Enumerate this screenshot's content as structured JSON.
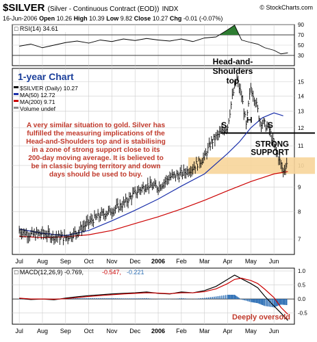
{
  "header": {
    "symbol": "$SILVER",
    "contract": "(Silver - Continuous Contract (EOD))",
    "exchange": "INDX",
    "brand": "© StockCharts.com",
    "quote": {
      "date": "16-Jun-2006",
      "open_label": "Open",
      "open": "10.26",
      "high_label": "High",
      "high": "10.39",
      "low_label": "Low",
      "low": "9.82",
      "close_label": "Close",
      "close": "10.27",
      "chg_label": "Chg",
      "chg": "-0.01 (-0.07%)"
    }
  },
  "annotations": {
    "period": "1-year Chart",
    "hs_title": "Head-and-\nShoulders\ntop",
    "left_shoulder": "S",
    "head": "H",
    "right_shoulder": "S",
    "support": "STRONG\nSUPPORT",
    "commentary": "A very similar situation to gold. Silver has\nfulfilled the measuring implications of the\nHead-and-Shoulders top and is stabilising\nin a zone of strong support close to its\n200-day moving average. It is believed to\nbe in classic buying territory and down\ndays should be used to buy.",
    "oversold": "Deeply oversold"
  },
  "colors": {
    "price": "#000000",
    "ma50": "#1a2faa",
    "ma200": "#cc0000",
    "rsi_fill": "#2e7d32",
    "support_zone": "#f7d59a",
    "annotation_text": "#c0392b",
    "period_text": "#1a3e9a",
    "macd_hist": "#2d6fb5",
    "grid": "#cccccc"
  },
  "chart_data": [
    {
      "type": "line",
      "panel": "RSI",
      "legend": "RSI(14) 34.61",
      "ylim": [
        10,
        90
      ],
      "yticks": [
        90,
        70,
        50,
        30
      ],
      "reference_lines": [
        70,
        30
      ],
      "x_labels": [
        "Jul",
        "Aug",
        "Sep",
        "Oct",
        "Nov",
        "Dec",
        "2006",
        "Feb",
        "Mar",
        "Apr",
        "May",
        "Jun"
      ],
      "x": [
        0,
        0.5,
        1,
        1.5,
        2,
        2.5,
        3,
        3.5,
        4,
        4.5,
        5,
        5.5,
        6,
        6.5,
        7,
        7.5,
        8,
        8.5,
        9,
        9.3,
        9.6,
        10,
        10.3,
        10.6,
        11,
        11.3,
        11.6
      ],
      "values": [
        48,
        52,
        45,
        50,
        55,
        58,
        54,
        60,
        57,
        62,
        59,
        63,
        60,
        58,
        62,
        57,
        64,
        66,
        80,
        89,
        60,
        55,
        52,
        45,
        40,
        33,
        35
      ]
    },
    {
      "type": "line",
      "panel": "Price",
      "legend": [
        {
          "name": "$SILVER (Daily) 10.27",
          "color": "#000000"
        },
        {
          "name": "MA(50) 12.72",
          "color": "#1a2faa"
        },
        {
          "name": "MA(200) 9.71",
          "color": "#cc0000"
        },
        {
          "name": "Volume undef",
          "color": "#888888"
        }
      ],
      "scale": "log",
      "ylim": [
        6.5,
        16
      ],
      "yticks": [
        15,
        14,
        13,
        12,
        11,
        10,
        9,
        8,
        7
      ],
      "x_labels": [
        "Jul",
        "Aug",
        "Sep",
        "Oct",
        "Nov",
        "Dec",
        "2006",
        "Feb",
        "Mar",
        "Apr",
        "May",
        "Jun"
      ],
      "series": [
        {
          "name": "$SILVER (Daily) 10.27",
          "x": [
            0,
            0.5,
            1,
            1.5,
            2,
            2.5,
            3,
            3.5,
            4,
            4.5,
            5,
            5.5,
            6,
            6.5,
            7,
            7.5,
            8,
            8.3,
            8.6,
            9,
            9.2,
            9.4,
            9.6,
            9.8,
            10,
            10.2,
            10.4,
            10.6,
            10.8,
            11,
            11.2,
            11.4,
            11.6
          ],
          "values": [
            7.3,
            7.15,
            7.2,
            7.1,
            7.05,
            7.25,
            7.6,
            7.85,
            8.05,
            8.3,
            8.75,
            9.1,
            9.0,
            9.45,
            9.6,
            9.9,
            10.4,
            11.2,
            11.6,
            12.1,
            13.9,
            15.2,
            14.0,
            12.1,
            14.6,
            13.7,
            12.4,
            12.2,
            11.9,
            11.0,
            10.4,
            9.7,
            10.27
          ]
        },
        {
          "name": "MA(50) 12.72",
          "x": [
            0,
            1,
            2,
            3,
            4,
            5,
            6,
            7,
            8,
            9,
            9.5,
            10,
            10.5,
            11,
            11.4
          ],
          "values": [
            7.35,
            7.2,
            7.12,
            7.3,
            7.65,
            8.05,
            8.5,
            9.05,
            9.6,
            10.6,
            11.2,
            12.0,
            12.6,
            12.9,
            12.72
          ]
        },
        {
          "name": "MA(200) 9.71",
          "x": [
            0,
            1,
            2,
            3,
            4,
            5,
            6,
            7,
            8,
            9,
            10,
            11,
            11.6
          ],
          "values": [
            7.1,
            7.05,
            7.08,
            7.15,
            7.3,
            7.55,
            7.8,
            8.1,
            8.45,
            8.85,
            9.25,
            9.6,
            9.71
          ]
        }
      ],
      "support_zone": [
        9.6,
        10.4
      ],
      "neckline": 11.7
    },
    {
      "type": "line",
      "panel": "MACD",
      "legend": [
        {
          "name": "MACD(12,26,9)",
          "value": "-0.769",
          "color": "#000000"
        },
        {
          "name": "",
          "value": "-0.547",
          "color": "#cc0000"
        },
        {
          "name": "",
          "value": "-0.221",
          "color": "#2d6fb5"
        }
      ],
      "ylim": [
        -0.9,
        1.1
      ],
      "yticks": [
        1.0,
        0.5,
        0.0,
        -0.5
      ],
      "x_labels": [
        "Jul",
        "Aug",
        "Sep",
        "Oct",
        "Nov",
        "Dec",
        "2006",
        "Feb",
        "Mar",
        "Apr",
        "May",
        "Jun"
      ],
      "series": [
        {
          "name": "MACD",
          "x": [
            0,
            0.5,
            1,
            1.5,
            2,
            2.5,
            3,
            3.5,
            4,
            4.5,
            5,
            5.5,
            6,
            6.5,
            7,
            7.5,
            8,
            8.5,
            9,
            9.3,
            9.6,
            10,
            10.3,
            10.6,
            11,
            11.3,
            11.6
          ],
          "values": [
            0.02,
            -0.02,
            0.0,
            -0.03,
            0.03,
            0.08,
            0.12,
            0.15,
            0.18,
            0.2,
            0.22,
            0.25,
            0.2,
            0.18,
            0.25,
            0.22,
            0.3,
            0.45,
            0.7,
            0.85,
            0.72,
            0.55,
            0.4,
            0.1,
            -0.25,
            -0.5,
            -0.769
          ]
        },
        {
          "name": "Signal",
          "x": [
            0,
            0.5,
            1,
            1.5,
            2,
            2.5,
            3,
            3.5,
            4,
            4.5,
            5,
            5.5,
            6,
            6.5,
            7,
            7.5,
            8,
            8.5,
            9,
            9.3,
            9.6,
            10,
            10.3,
            10.6,
            11,
            11.3,
            11.6
          ],
          "values": [
            0.03,
            0.0,
            0.0,
            -0.01,
            0.01,
            0.05,
            0.09,
            0.12,
            0.15,
            0.18,
            0.2,
            0.22,
            0.21,
            0.19,
            0.22,
            0.22,
            0.26,
            0.36,
            0.55,
            0.7,
            0.74,
            0.66,
            0.55,
            0.35,
            0.05,
            -0.3,
            -0.547
          ]
        }
      ],
      "histogram": {
        "name": "Histogram",
        "x": [
          0,
          0.5,
          1,
          1.5,
          2,
          2.5,
          3,
          3.5,
          4,
          4.5,
          5,
          5.5,
          6,
          6.5,
          7,
          7.5,
          8,
          8.5,
          9,
          9.3,
          9.6,
          10,
          10.3,
          10.6,
          11,
          11.3,
          11.6
        ],
        "values": [
          -0.01,
          -0.02,
          0.0,
          -0.02,
          0.02,
          0.03,
          0.03,
          0.03,
          0.03,
          0.02,
          0.02,
          0.03,
          -0.01,
          -0.01,
          0.03,
          0.0,
          0.04,
          0.09,
          0.15,
          0.15,
          -0.02,
          -0.11,
          -0.15,
          -0.25,
          -0.3,
          -0.2,
          -0.221
        ]
      }
    }
  ]
}
